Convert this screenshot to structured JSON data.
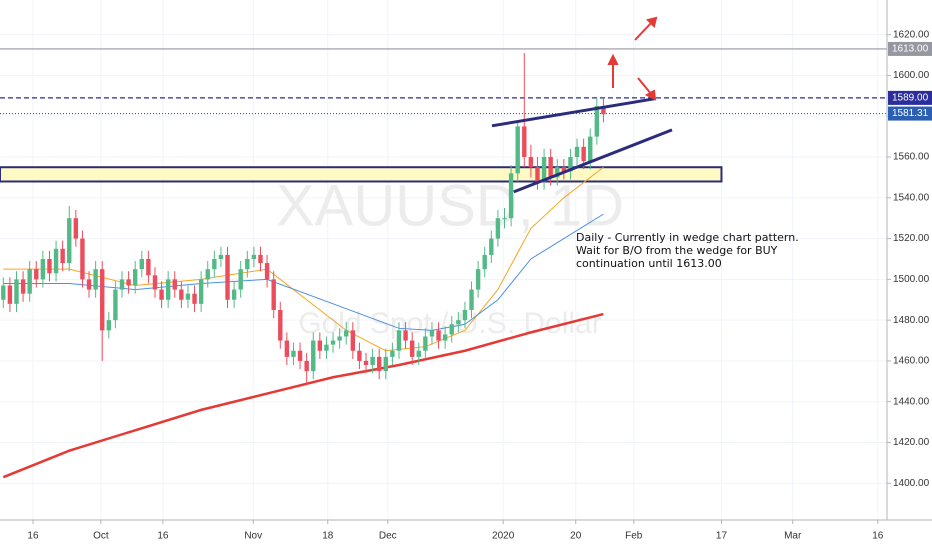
{
  "chart_data": {
    "type": "candlestick",
    "watermark": "XAUUSD, 1D",
    "subtitle": "Gold Spot / U.S. Dollar",
    "annotation": [
      "Daily - Currently in wedge chart pattern.",
      "Wait for B/O from the wedge for BUY",
      "continuation until 1613.00"
    ],
    "up_color": "#53b987",
    "down_color": "#eb4d5c",
    "xlim": [
      -0.5,
      134
    ],
    "ylim": [
      1382,
      1637
    ],
    "grid": true,
    "xticks": [
      {
        "value": 4.5,
        "label": "16"
      },
      {
        "value": 14.8,
        "label": "Oct"
      },
      {
        "value": 24.2,
        "label": "16"
      },
      {
        "value": 37.9,
        "label": "Nov"
      },
      {
        "value": 49.2,
        "label": "18"
      },
      {
        "value": 58.3,
        "label": "Dec"
      },
      {
        "value": 75.8,
        "label": "2020"
      },
      {
        "value": 86.8,
        "label": "20"
      },
      {
        "value": 95.6,
        "label": "Feb"
      },
      {
        "value": 108.9,
        "label": "17"
      },
      {
        "value": 119.7,
        "label": "Mar"
      },
      {
        "value": 132.6,
        "label": "16"
      }
    ],
    "yticks": [
      {
        "value": 1400,
        "label": "1400.00"
      },
      {
        "value": 1420,
        "label": "1420.00"
      },
      {
        "value": 1440,
        "label": "1440.00"
      },
      {
        "value": 1460,
        "label": "1460.00"
      },
      {
        "value": 1480,
        "label": "1480.00"
      },
      {
        "value": 1500,
        "label": "1500.00"
      },
      {
        "value": 1520,
        "label": "1520.00"
      },
      {
        "value": 1540,
        "label": "1540.00"
      },
      {
        "value": 1560,
        "label": "1560.00"
      },
      {
        "value": 1580,
        "label": "1580.00"
      },
      {
        "value": 1600,
        "label": "1600.00"
      },
      {
        "value": 1620,
        "label": "1620.00"
      }
    ],
    "candles": {
      "x": [
        0,
        1,
        2,
        3,
        4,
        5,
        6,
        7,
        8,
        9,
        10,
        11,
        12,
        13,
        14,
        15,
        16,
        17,
        18,
        19,
        20,
        21,
        22,
        23,
        24,
        25,
        26,
        27,
        28,
        29,
        30,
        31,
        32,
        33,
        34,
        35,
        36,
        37,
        38,
        39,
        40,
        41,
        42,
        43,
        44,
        45,
        46,
        47,
        48,
        49,
        50,
        51,
        52,
        53,
        54,
        55,
        56,
        57,
        58,
        59,
        60,
        61,
        62,
        63,
        64,
        65,
        66,
        67,
        68,
        69,
        70,
        71,
        72,
        73,
        74,
        75,
        76,
        77,
        78,
        79,
        80,
        81,
        82,
        83,
        84,
        85,
        86,
        87,
        88,
        89,
        90,
        91
      ],
      "open": [
        1490,
        1497,
        1488,
        1500,
        1493,
        1505,
        1500,
        1510,
        1503,
        1515,
        1508,
        1530,
        1520,
        1500,
        1495,
        1505,
        1475,
        1480,
        1495,
        1500,
        1497,
        1505,
        1510,
        1502,
        1495,
        1490,
        1500,
        1495,
        1490,
        1493,
        1488,
        1500,
        1505,
        1510,
        1512,
        1490,
        1495,
        1505,
        1510,
        1512,
        1508,
        1500,
        1485,
        1470,
        1462,
        1465,
        1460,
        1455,
        1470,
        1465,
        1468,
        1470,
        1472,
        1475,
        1465,
        1460,
        1458,
        1462,
        1455,
        1462,
        1465,
        1475,
        1470,
        1462,
        1465,
        1472,
        1475,
        1470,
        1473,
        1478,
        1480,
        1485,
        1495,
        1505,
        1512,
        1520,
        1530,
        1530,
        1552,
        1575,
        1560,
        1555,
        1548,
        1560,
        1550,
        1555,
        1553,
        1560,
        1565,
        1558,
        1570,
        1585
      ],
      "high": [
        1501,
        1501,
        1504,
        1504,
        1509,
        1509,
        1514,
        1514,
        1519,
        1519,
        1536,
        1534,
        1524,
        1504,
        1509,
        1509,
        1484,
        1499,
        1504,
        1504,
        1509,
        1514,
        1514,
        1506,
        1499,
        1504,
        1504,
        1499,
        1497,
        1497,
        1504,
        1509,
        1514,
        1516,
        1516,
        1499,
        1509,
        1514,
        1516,
        1516,
        1512,
        1504,
        1489,
        1474,
        1469,
        1469,
        1464,
        1474,
        1474,
        1472,
        1474,
        1476,
        1479,
        1479,
        1469,
        1464,
        1466,
        1466,
        1466,
        1469,
        1479,
        1479,
        1474,
        1469,
        1476,
        1479,
        1479,
        1477,
        1482,
        1484,
        1489,
        1499,
        1509,
        1516,
        1524,
        1534,
        1535,
        1556,
        1578,
        1611,
        1566,
        1560,
        1564,
        1564,
        1559,
        1559,
        1564,
        1569,
        1569,
        1574,
        1589,
        1589
      ],
      "low": [
        1486,
        1484,
        1484,
        1489,
        1489,
        1496,
        1496,
        1499,
        1499,
        1504,
        1504,
        1516,
        1496,
        1491,
        1491,
        1460,
        1471,
        1476,
        1491,
        1493,
        1493,
        1501,
        1498,
        1491,
        1486,
        1486,
        1491,
        1486,
        1486,
        1484,
        1484,
        1496,
        1501,
        1506,
        1486,
        1486,
        1491,
        1501,
        1506,
        1504,
        1496,
        1481,
        1466,
        1458,
        1458,
        1456,
        1448,
        1451,
        1461,
        1461,
        1464,
        1466,
        1468,
        1461,
        1456,
        1454,
        1454,
        1451,
        1451,
        1458,
        1461,
        1466,
        1458,
        1458,
        1461,
        1468,
        1466,
        1466,
        1469,
        1474,
        1476,
        1481,
        1491,
        1501,
        1508,
        1516,
        1525,
        1526,
        1548,
        1555,
        1550,
        1544,
        1544,
        1546,
        1546,
        1549,
        1549,
        1556,
        1554,
        1554,
        1566,
        1577
      ],
      "close": [
        1497,
        1488,
        1500,
        1493,
        1505,
        1500,
        1510,
        1503,
        1515,
        1508,
        1530,
        1520,
        1500,
        1495,
        1505,
        1475,
        1480,
        1495,
        1500,
        1497,
        1505,
        1510,
        1502,
        1495,
        1490,
        1500,
        1495,
        1490,
        1493,
        1488,
        1500,
        1505,
        1510,
        1512,
        1490,
        1495,
        1505,
        1510,
        1512,
        1508,
        1500,
        1485,
        1470,
        1462,
        1465,
        1460,
        1455,
        1470,
        1465,
        1468,
        1470,
        1472,
        1475,
        1465,
        1460,
        1458,
        1462,
        1455,
        1462,
        1465,
        1475,
        1470,
        1462,
        1465,
        1472,
        1475,
        1470,
        1473,
        1478,
        1480,
        1485,
        1495,
        1505,
        1512,
        1520,
        1530,
        1530,
        1552,
        1575,
        1560,
        1555,
        1548,
        1560,
        1550,
        1555,
        1553,
        1560,
        1565,
        1558,
        1570,
        1585,
        1581
      ]
    },
    "moving_averages": [
      {
        "color": "#f5a623",
        "x": [
          0,
          10,
          20,
          30,
          40,
          46,
          52,
          58,
          64,
          70,
          75,
          80,
          85,
          91
        ],
        "values": [
          1505,
          1505,
          1497,
          1500,
          1505,
          1490,
          1475,
          1465,
          1467,
          1475,
          1495,
          1525,
          1540,
          1555
        ]
      },
      {
        "color": "#4a90e2",
        "x": [
          0,
          10,
          20,
          30,
          40,
          50,
          60,
          65,
          70,
          75,
          80,
          85,
          91
        ],
        "values": [
          1498,
          1498,
          1495,
          1498,
          1500,
          1488,
          1476,
          1475,
          1478,
          1490,
          1510,
          1520,
          1532
        ]
      },
      {
        "color": "#e53935",
        "x": [
          0,
          10,
          20,
          30,
          40,
          50,
          60,
          70,
          80,
          91
        ],
        "values": [
          1403,
          1416,
          1426,
          1436,
          1444,
          1452,
          1458,
          1465,
          1474,
          1483
        ]
      }
    ],
    "zone": {
      "x": [
        -0.5,
        108.9
      ],
      "low": 1548,
      "high": 1555,
      "color": "#fff9c4",
      "border": "#2b2d7c"
    },
    "wedge": [
      {
        "x": [
          74.1,
          98.8
        ],
        "values": [
          1575.3,
          1588.6
        ],
        "color": "#2b2d7c"
      },
      {
        "x": [
          77.4,
          101.4
        ],
        "values": [
          1542.9,
          1573.3
        ],
        "color": "#2b2d7c"
      }
    ],
    "price_lines": [
      {
        "value": 1613,
        "label": "1613.00",
        "color": "#9598a1",
        "dash": "none"
      },
      {
        "value": 1589,
        "label": "1589.00",
        "color": "#2b2d9c",
        "dash": "5,3"
      },
      {
        "value": 1581.31,
        "color": "#2b5fb4",
        "dash": "1,2"
      }
    ]
  }
}
